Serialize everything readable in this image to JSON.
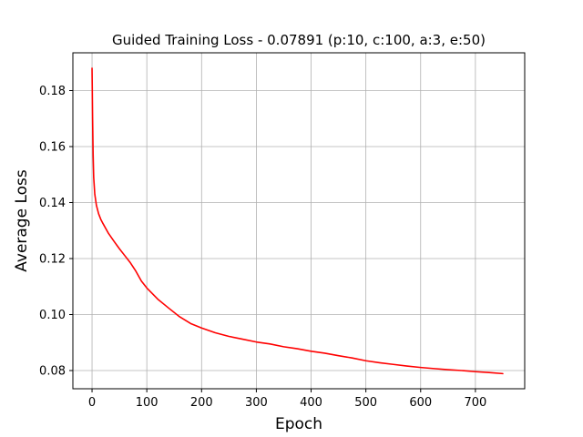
{
  "chart_data": {
    "type": "line",
    "title": "Guided Training Loss - 0.07891 (p:10, c:100, a:3, e:50)",
    "xlabel": "Epoch",
    "ylabel": "Average Loss",
    "xlim": [
      -35,
      790
    ],
    "ylim": [
      0.0735,
      0.1935
    ],
    "xticks": [
      0,
      100,
      200,
      300,
      400,
      500,
      600,
      700
    ],
    "yticks": [
      0.08,
      0.1,
      0.12,
      0.14,
      0.16,
      0.18
    ],
    "xtick_labels": [
      "0",
      "100",
      "200",
      "300",
      "400",
      "500",
      "600",
      "700"
    ],
    "ytick_labels": [
      "0.08",
      "0.10",
      "0.12",
      "0.14",
      "0.16",
      "0.18"
    ],
    "grid": true,
    "series": [
      {
        "color": "#ff0000",
        "x": [
          0,
          1,
          2,
          3,
          5,
          8,
          12,
          16,
          20,
          30,
          40,
          50,
          60,
          70,
          80,
          90,
          100,
          120,
          140,
          160,
          180,
          200,
          225,
          250,
          275,
          300,
          325,
          350,
          375,
          400,
          425,
          450,
          475,
          500,
          525,
          550,
          575,
          600,
          625,
          650,
          675,
          700,
          725,
          750
        ],
        "y": [
          0.188,
          0.17,
          0.157,
          0.149,
          0.143,
          0.139,
          0.136,
          0.134,
          0.1325,
          0.129,
          0.1262,
          0.1235,
          0.121,
          0.1185,
          0.1155,
          0.112,
          0.1095,
          0.1055,
          0.1023,
          0.0992,
          0.0968,
          0.0952,
          0.0935,
          0.0922,
          0.0912,
          0.0902,
          0.0895,
          0.0885,
          0.0878,
          0.0869,
          0.0862,
          0.0853,
          0.0845,
          0.0835,
          0.0828,
          0.0822,
          0.0816,
          0.0811,
          0.0807,
          0.0803,
          0.08,
          0.0796,
          0.0793,
          0.0789
        ]
      }
    ]
  }
}
